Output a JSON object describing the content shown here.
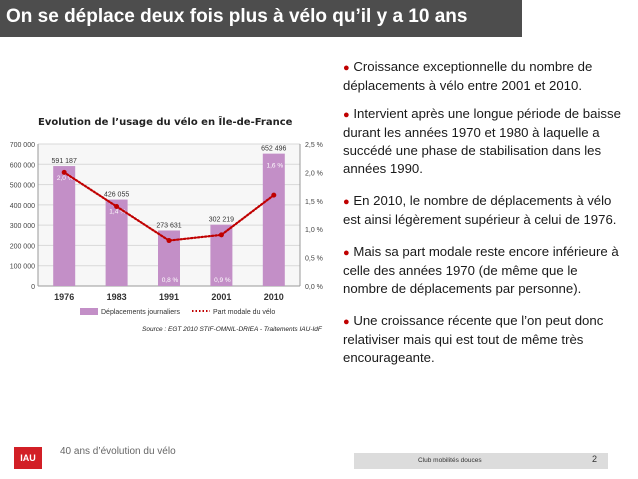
{
  "slide": {
    "title": "On se déplace deux fois plus à vélo qu’il y a 10 ans",
    "footer_subtitle": "40 ans d’évolution du vélo",
    "logo_text": "IAU",
    "footer_label": "Club mobilités douces",
    "page_number": "2"
  },
  "bullets": [
    "Croissance exceptionnelle du nombre de déplacements à vélo entre 2001 et 2010.",
    "Intervient après une longue période de baisse durant les années 1970 et 1980 à laquelle a succédé une phase de stabilisation dans les années 1990.",
    "En 2010, le nombre de déplacements à vélo est ainsi légèrement supérieur à celui de 1976.",
    "Mais sa part modale reste encore inférieure à celle des années 1970 (de même que le nombre de déplacements par personne).",
    "Une croissance récente que l’on peut donc relativiser mais qui est tout de même très encourageante."
  ],
  "colors": {
    "bar": "#c38fc7",
    "line": "#c00000",
    "title_bar": "#4d4d4d",
    "bullet": "#c00000",
    "logo": "#d21f26"
  },
  "chart_data": {
    "type": "bar",
    "title": "Evolution de l’usage du vélo en Île-de-France",
    "categories": [
      "1976",
      "1983",
      "1991",
      "2001",
      "2010"
    ],
    "series": [
      {
        "name": "Déplacements journaliers",
        "type": "bar",
        "axis": "left",
        "values": [
          591187,
          426055,
          273631,
          302219,
          652496
        ],
        "labels": [
          "591 187",
          "426 055",
          "273 631",
          "302 219",
          "652 496"
        ]
      },
      {
        "name": "Part modale du vélo",
        "type": "line",
        "axis": "right",
        "style": "dotted",
        "values": [
          2.0,
          1.4,
          0.8,
          0.9,
          1.6
        ],
        "labels": [
          "2,0 %",
          "1,4 %",
          "0,8 %",
          "0,9 %",
          "1,6 %"
        ]
      }
    ],
    "yaxis_left": {
      "min": 0,
      "max": 700000,
      "ticks": [
        "0",
        "100 000",
        "200 000",
        "300 000",
        "400 000",
        "500 000",
        "600 000",
        "700 000"
      ]
    },
    "yaxis_right": {
      "min": 0,
      "max": 2.5,
      "ticks": [
        "0,0 %",
        "0,5 %",
        "1,0 %",
        "1,5 %",
        "2,0 %",
        "2,5 %"
      ]
    },
    "grid": true,
    "legend": "bottom",
    "source": "Source : EGT 2010 STIF-OMNIL-DRIEA - Traitements IAU-IdF"
  }
}
